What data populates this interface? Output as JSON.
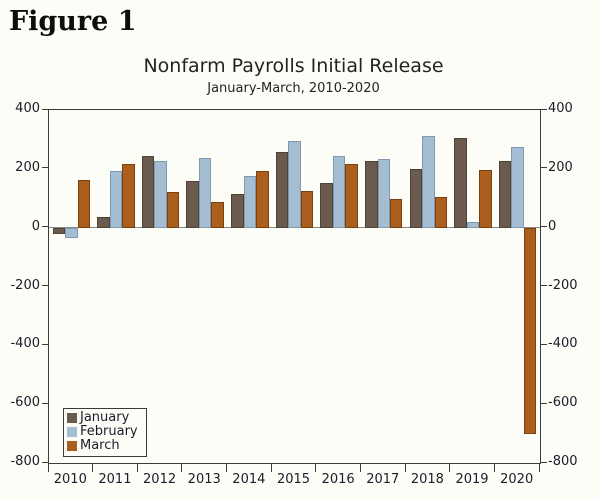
{
  "figure_label": "Figure 1",
  "chart_data": {
    "type": "bar",
    "title": "Nonfarm Payrolls Initial Release",
    "subtitle": "January-March, 2010-2020",
    "categories": [
      "2010",
      "2011",
      "2012",
      "2013",
      "2014",
      "2015",
      "2016",
      "2017",
      "2018",
      "2019",
      "2020"
    ],
    "series": [
      {
        "name": "January",
        "color": "#6a5b4e",
        "border_color": "#4e4136",
        "values": [
          -20,
          36,
          243,
          157,
          113,
          257,
          151,
          227,
          200,
          304,
          225
        ]
      },
      {
        "name": "February",
        "color": "#a4bdd3",
        "border_color": "#7f99ae",
        "values": [
          -36,
          192,
          227,
          236,
          175,
          295,
          242,
          235,
          313,
          20,
          273
        ]
      },
      {
        "name": "March",
        "color": "#ac5e1d",
        "border_color": "#7a4110",
        "values": [
          162,
          216,
          120,
          88,
          192,
          126,
          215,
          98,
          103,
          196,
          -701
        ]
      }
    ],
    "ylim": [
      -800,
      400
    ],
    "y_ticks": [
      400,
      200,
      0,
      -200,
      -400,
      -600,
      -800
    ],
    "grid": false,
    "legend_position": "bottom-left",
    "axis_color": "#3c3c3c",
    "zero_line_color": "#8a8a8a",
    "text_color": "#1c1c28"
  }
}
